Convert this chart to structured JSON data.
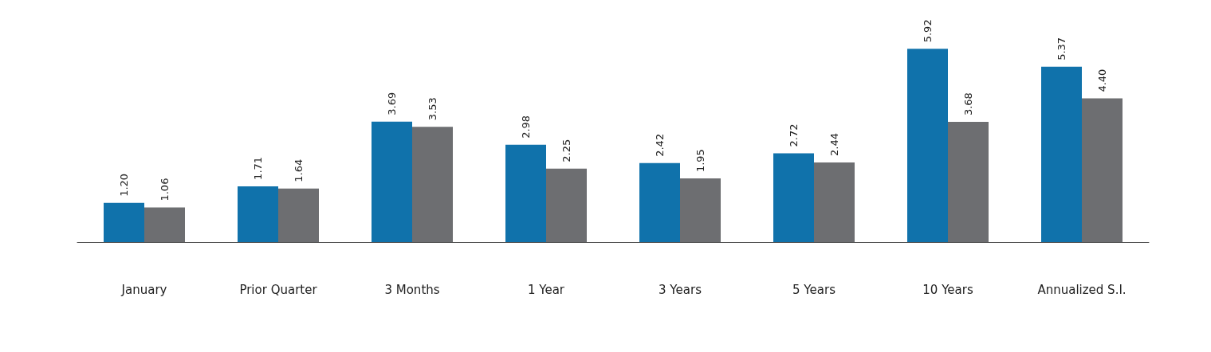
{
  "chart_data": {
    "type": "bar",
    "categories": [
      "January",
      "Prior Quarter",
      "3 Months",
      "1 Year",
      "3 Years",
      "5 Years",
      "10 Years",
      "Annualized S.I."
    ],
    "series": [
      {
        "color": "#1072ab",
        "values": [
          1.2,
          1.71,
          3.69,
          2.98,
          2.42,
          2.72,
          5.92,
          5.37
        ],
        "value_labels": [
          "1.20",
          "1.71",
          "3.69",
          "2.98",
          "2.42",
          "2.72",
          "5.92",
          "5.37"
        ]
      },
      {
        "color": "#6d6e71",
        "values": [
          1.06,
          1.64,
          3.53,
          2.25,
          1.95,
          2.44,
          3.68,
          4.4
        ],
        "value_labels": [
          "1.06",
          "1.64",
          "3.53",
          "2.25",
          "1.95",
          "2.44",
          "3.68",
          "4.40"
        ]
      }
    ],
    "grid": false
  }
}
